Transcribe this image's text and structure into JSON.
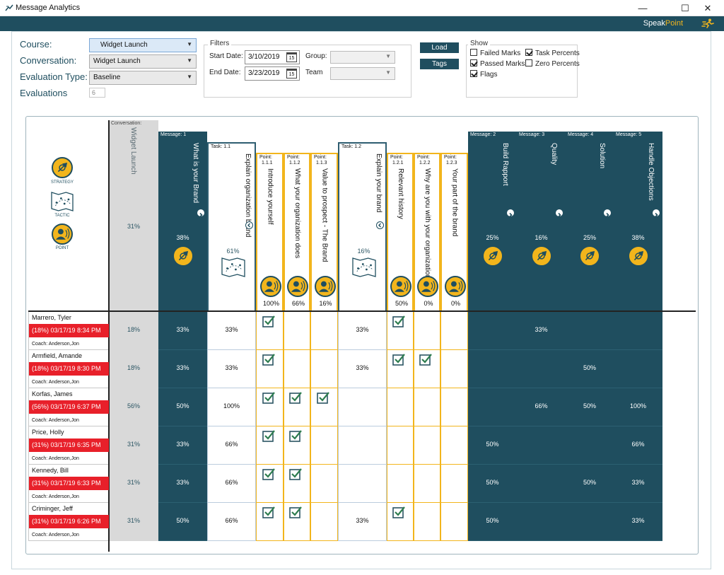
{
  "window": {
    "title": "Message Analytics",
    "brand_speak": "Speak",
    "brand_point": "Point",
    "btn_min": "—",
    "btn_max": "☐",
    "btn_close": "✕"
  },
  "form": {
    "course_label": "Course:",
    "course_value": "Widget Launch",
    "conversation_label": "Conversation:",
    "conversation_value": "Widget Launch",
    "eval_type_label": "Evaluation Type:",
    "eval_type_value": "Baseline",
    "evaluations_label": "Evaluations",
    "evaluations_value": "6"
  },
  "filters": {
    "title": "Filters",
    "start_label": "Start Date:",
    "start_value": "3/10/2019",
    "end_label": "End Date:",
    "end_value": "3/23/2019",
    "cal_day": "15",
    "group_label": "Group:",
    "team_label": "Team"
  },
  "buttons": {
    "load": "Load",
    "tags": "Tags"
  },
  "show": {
    "title": "Show",
    "items": [
      {
        "label": "Failed Marks",
        "checked": false
      },
      {
        "label": "Task Percents",
        "checked": true
      },
      {
        "label": "Passed Marks",
        "checked": true
      },
      {
        "label": "Zero Percents",
        "checked": false
      },
      {
        "label": "Flags",
        "checked": true
      }
    ]
  },
  "legend": {
    "strategy": "STRATEGY",
    "tactic": "TACTIC",
    "point": "POINT"
  },
  "colors": {
    "dark": "#1f4e5f",
    "gold": "#f2b51c",
    "grey": "#d9d9d9",
    "red": "#e8202a",
    "task_border": "#2e5d70"
  },
  "columns": [
    {
      "kind": "conversation",
      "tag": "Conversation:",
      "title": "Widget Launch",
      "pct": "31%"
    },
    {
      "kind": "message",
      "tag": "Message:  1",
      "title": "What is your Brand",
      "pct": "38%"
    },
    {
      "kind": "task",
      "tag": "Task:  1.1",
      "title": "Explain organization brand",
      "pct": "61%"
    },
    {
      "kind": "point",
      "tag": "Point:",
      "tag2": "1.1.1",
      "title": "Introduce yourself",
      "pct": "100%"
    },
    {
      "kind": "point",
      "tag": "Point:",
      "tag2": "1.1.2",
      "title": "What your organization does",
      "pct": "66%"
    },
    {
      "kind": "point",
      "tag": "Point:",
      "tag2": "1.1.3",
      "title": "Value to prospect - The Brand",
      "pct": "16%"
    },
    {
      "kind": "task",
      "tag": "Task:  1.2",
      "title": "Explain your brand",
      "pct": "16%"
    },
    {
      "kind": "point",
      "tag": "Point:",
      "tag2": "1.2.1",
      "title": "Relevant history",
      "pct": "50%"
    },
    {
      "kind": "point",
      "tag": "Point:",
      "tag2": "1.2.2",
      "title": "Why are you with your organization",
      "pct": "0%"
    },
    {
      "kind": "point",
      "tag": "Point:",
      "tag2": "1.2.3",
      "title": "Your part of the brand",
      "pct": "0%"
    },
    {
      "kind": "message",
      "tag": "Message:  2",
      "title": "Build Rapport",
      "pct": "25%"
    },
    {
      "kind": "message",
      "tag": "Message:  3",
      "title": "Quality",
      "pct": "16%"
    },
    {
      "kind": "message",
      "tag": "Message:  4",
      "title": "Solution",
      "pct": "25%"
    },
    {
      "kind": "message",
      "tag": "Message:  5",
      "title": "Handle Objections",
      "pct": "38%"
    }
  ],
  "rows": [
    {
      "name": "Marrero, Tyler",
      "date": "(18%)  03/17/19 8:34 PM",
      "coach": "Coach: Anderson,Jon",
      "cells": [
        "18%",
        "33%",
        "33%",
        "✓",
        "",
        "",
        "33%",
        "✓",
        "",
        "",
        "",
        "33%",
        "",
        ""
      ]
    },
    {
      "name": "Armfield, Amande",
      "date": "(18%)  03/17/19 8:30 PM",
      "coach": "Coach: Anderson,Jon",
      "cells": [
        "18%",
        "33%",
        "33%",
        "✓",
        "",
        "",
        "33%",
        "✓",
        "✓",
        "",
        "",
        "",
        "50%",
        ""
      ]
    },
    {
      "name": "Korfas, James",
      "date": "(56%)  03/17/19 6:37 PM",
      "coach": "Coach: Anderson,Jon",
      "cells": [
        "56%",
        "50%",
        "100%",
        "✓",
        "✓",
        "✓",
        "",
        "",
        "",
        "",
        "",
        "66%",
        "50%",
        "100%"
      ]
    },
    {
      "name": "Price, Holly",
      "date": "(31%)  03/17/19 6:35 PM",
      "coach": "Coach: Anderson,Jon",
      "cells": [
        "31%",
        "33%",
        "66%",
        "✓",
        "✓",
        "",
        "",
        "",
        "",
        "",
        "50%",
        "",
        "",
        "66%"
      ]
    },
    {
      "name": "Kennedy, Bill",
      "date": "(31%)  03/17/19 6:33 PM",
      "coach": "Coach: Anderson,Jon",
      "cells": [
        "31%",
        "33%",
        "66%",
        "✓",
        "✓",
        "",
        "",
        "",
        "",
        "",
        "50%",
        "",
        "50%",
        "33%"
      ]
    },
    {
      "name": "Criminger, Jeff",
      "date": "(31%)  03/17/19 6:26 PM",
      "coach": "Coach: Anderson,Jon",
      "cells": [
        "31%",
        "50%",
        "66%",
        "✓",
        "✓",
        "",
        "33%",
        "✓",
        "",
        "",
        "50%",
        "",
        "",
        "33%"
      ]
    }
  ]
}
